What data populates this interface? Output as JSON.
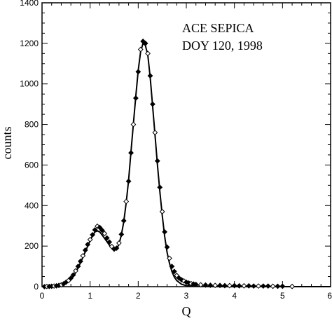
{
  "chart_data": {
    "type": "scatter",
    "xlabel": "Q",
    "ylabel": "counts",
    "xlim": [
      0,
      6
    ],
    "ylim": [
      0,
      1400
    ],
    "x_ticks": [
      "0",
      "1",
      "2",
      "3",
      "4",
      "5",
      "6"
    ],
    "y_ticks": [
      "0",
      "200",
      "400",
      "600",
      "800",
      "1000",
      "1200",
      "1400"
    ],
    "annotations": [
      "ACE SEPICA",
      "DOY 120, 1998"
    ],
    "grid": false,
    "legend": "none",
    "series": [
      {
        "style": "diamond-markers",
        "color": "#000000",
        "points": [
          [
            0.05,
            0
          ],
          [
            0.1,
            1
          ],
          [
            0.15,
            1
          ],
          [
            0.2,
            2
          ],
          [
            0.25,
            3
          ],
          [
            0.3,
            4
          ],
          [
            0.35,
            6
          ],
          [
            0.4,
            9
          ],
          [
            0.45,
            14
          ],
          [
            0.5,
            22
          ],
          [
            0.55,
            30
          ],
          [
            0.6,
            42
          ],
          [
            0.65,
            58
          ],
          [
            0.7,
            78
          ],
          [
            0.75,
            100
          ],
          [
            0.8,
            125
          ],
          [
            0.85,
            152
          ],
          [
            0.9,
            180
          ],
          [
            0.95,
            208
          ],
          [
            1.0,
            232
          ],
          [
            1.05,
            256
          ],
          [
            1.1,
            280
          ],
          [
            1.15,
            298
          ],
          [
            1.2,
            292
          ],
          [
            1.25,
            278
          ],
          [
            1.3,
            262
          ],
          [
            1.35,
            240
          ],
          [
            1.4,
            220
          ],
          [
            1.45,
            198
          ],
          [
            1.5,
            185
          ],
          [
            1.55,
            190
          ],
          [
            1.6,
            215
          ],
          [
            1.65,
            258
          ],
          [
            1.7,
            325
          ],
          [
            1.75,
            420
          ],
          [
            1.8,
            520
          ],
          [
            1.85,
            660
          ],
          [
            1.9,
            800
          ],
          [
            1.95,
            930
          ],
          [
            2.0,
            1060
          ],
          [
            2.05,
            1170
          ],
          [
            2.1,
            1210
          ],
          [
            2.15,
            1200
          ],
          [
            2.2,
            1150
          ],
          [
            2.25,
            1040
          ],
          [
            2.3,
            900
          ],
          [
            2.35,
            760
          ],
          [
            2.4,
            620
          ],
          [
            2.45,
            490
          ],
          [
            2.5,
            370
          ],
          [
            2.55,
            270
          ],
          [
            2.6,
            195
          ],
          [
            2.65,
            140
          ],
          [
            2.7,
            100
          ],
          [
            2.75,
            75
          ],
          [
            2.8,
            55
          ],
          [
            2.85,
            42
          ],
          [
            2.9,
            34
          ],
          [
            2.95,
            28
          ],
          [
            3.0,
            22
          ],
          [
            3.05,
            18
          ],
          [
            3.1,
            15
          ],
          [
            3.15,
            13
          ],
          [
            3.2,
            11
          ],
          [
            3.3,
            9
          ],
          [
            3.4,
            8
          ],
          [
            3.5,
            7
          ],
          [
            3.6,
            6
          ],
          [
            3.7,
            6
          ],
          [
            3.8,
            5
          ],
          [
            3.9,
            5
          ],
          [
            4.0,
            5
          ],
          [
            4.1,
            4
          ],
          [
            4.2,
            4
          ],
          [
            4.3,
            4
          ],
          [
            4.4,
            3
          ],
          [
            4.5,
            3
          ],
          [
            4.6,
            3
          ],
          [
            4.7,
            3
          ],
          [
            4.8,
            2
          ],
          [
            4.9,
            2
          ],
          [
            5.0,
            2
          ],
          [
            5.2,
            1
          ]
        ]
      },
      {
        "style": "solid-line",
        "color": "#000000",
        "points": [
          [
            0.0,
            0
          ],
          [
            0.2,
            0
          ],
          [
            0.4,
            5
          ],
          [
            0.5,
            15
          ],
          [
            0.6,
            35
          ],
          [
            0.7,
            70
          ],
          [
            0.8,
            118
          ],
          [
            0.9,
            172
          ],
          [
            1.0,
            228
          ],
          [
            1.05,
            252
          ],
          [
            1.1,
            270
          ],
          [
            1.15,
            275
          ],
          [
            1.2,
            270
          ],
          [
            1.25,
            255
          ],
          [
            1.3,
            238
          ],
          [
            1.35,
            222
          ],
          [
            1.4,
            205
          ],
          [
            1.45,
            190
          ],
          [
            1.5,
            180
          ],
          [
            1.55,
            185
          ],
          [
            1.6,
            210
          ],
          [
            1.65,
            255
          ],
          [
            1.7,
            320
          ],
          [
            1.75,
            415
          ],
          [
            1.8,
            525
          ],
          [
            1.85,
            665
          ],
          [
            1.9,
            805
          ],
          [
            1.95,
            940
          ],
          [
            2.0,
            1065
          ],
          [
            2.05,
            1160
          ],
          [
            2.1,
            1200
          ],
          [
            2.15,
            1190
          ],
          [
            2.2,
            1140
          ],
          [
            2.25,
            1030
          ],
          [
            2.3,
            890
          ],
          [
            2.35,
            745
          ],
          [
            2.4,
            600
          ],
          [
            2.45,
            470
          ],
          [
            2.5,
            350
          ],
          [
            2.55,
            248
          ],
          [
            2.6,
            170
          ],
          [
            2.65,
            115
          ],
          [
            2.7,
            75
          ],
          [
            2.75,
            48
          ],
          [
            2.8,
            30
          ],
          [
            2.9,
            12
          ],
          [
            3.0,
            5
          ],
          [
            3.2,
            2
          ],
          [
            3.5,
            1
          ],
          [
            4.0,
            0
          ],
          [
            5.0,
            0
          ],
          [
            6.0,
            0
          ]
        ]
      }
    ]
  }
}
